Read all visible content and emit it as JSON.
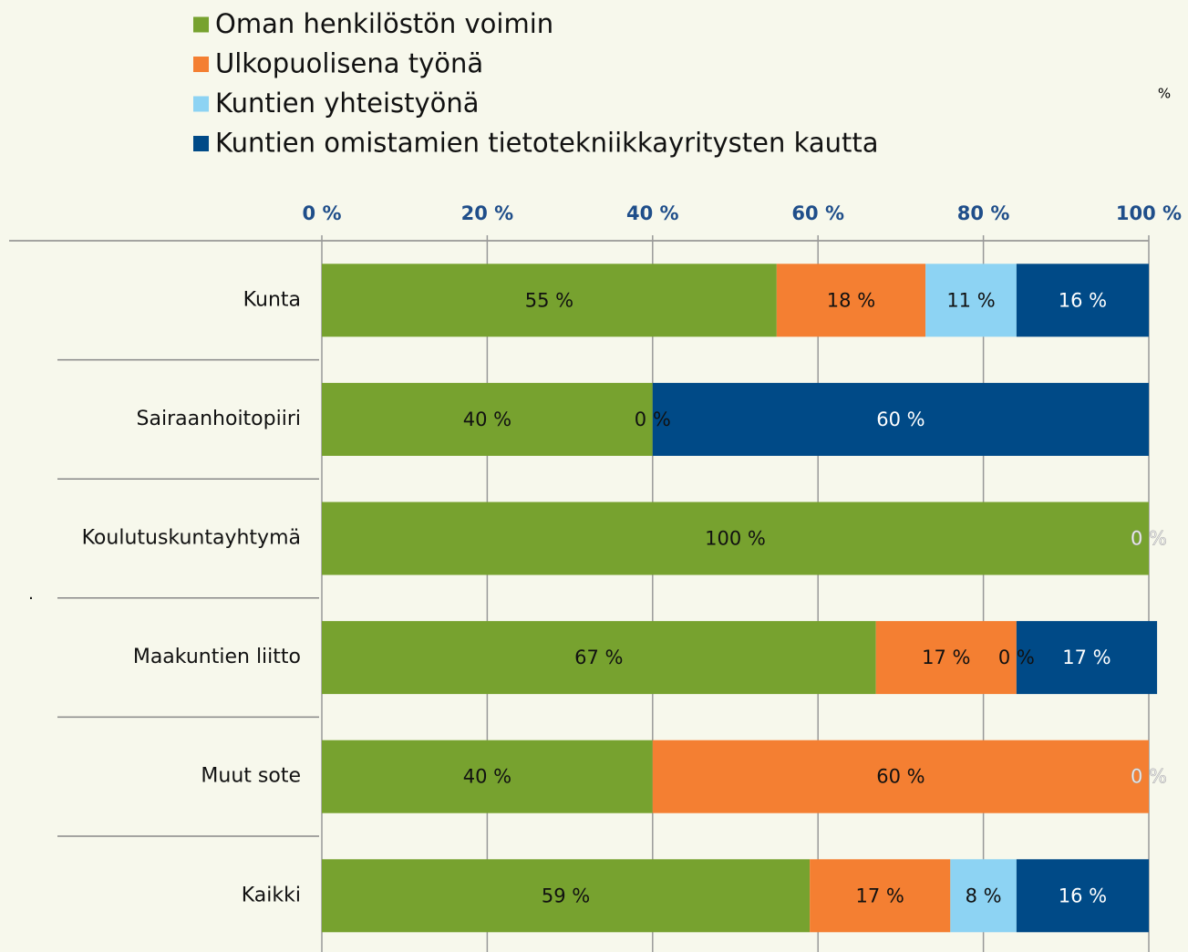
{
  "chart_data": {
    "type": "stacked_bar_horizontal",
    "unit_note": "%",
    "annotation": ".",
    "categories": [
      "Kunta",
      "Sairaanhoitopiiri",
      "Koulutuskuntayhtymä",
      "Maakuntien liitto",
      "Muut sote",
      "Kaikki"
    ],
    "series": [
      {
        "name": "Oman henkilöstön voimin",
        "color": "#77a22f",
        "label_color": "#111111",
        "values": [
          55,
          40,
          100,
          67,
          40,
          59
        ],
        "value_labels": [
          "55 %",
          "40 %",
          "100 %",
          "67 %",
          "40 %",
          "59 %"
        ]
      },
      {
        "name": "Ulkopuolisena työnä",
        "color": "#f47f32",
        "label_color": "#111111",
        "values": [
          18,
          0,
          null,
          17,
          60,
          17
        ],
        "value_labels": [
          "18 %",
          "0 %",
          null,
          "17 %",
          "60 %",
          "17 %"
        ]
      },
      {
        "name": "Kuntien yhteistyönä",
        "color": "#8dd3f3",
        "label_color": "#111111",
        "values": [
          11,
          null,
          null,
          0,
          null,
          8
        ],
        "value_labels": [
          "11 %",
          null,
          null,
          "0 %",
          null,
          "8 %"
        ]
      },
      {
        "name": "Kuntien omistamien tietotekniikkayritysten kautta",
        "color": "#004a87",
        "label_color": "#ffffff",
        "values": [
          16,
          60,
          0,
          17,
          0,
          16
        ],
        "value_labels": [
          "16 %",
          "60 %",
          "0 %",
          "17 %",
          "0 %",
          "16 %"
        ]
      }
    ],
    "xlim": [
      0,
      100
    ],
    "xticks": [
      {
        "value": 0,
        "label": "0 %"
      },
      {
        "value": 20,
        "label": "20 %"
      },
      {
        "value": 40,
        "label": "40 %"
      },
      {
        "value": 60,
        "label": "60 %"
      },
      {
        "value": 80,
        "label": "80 %"
      },
      {
        "value": 100,
        "label": "100 %"
      }
    ],
    "grid": true
  }
}
